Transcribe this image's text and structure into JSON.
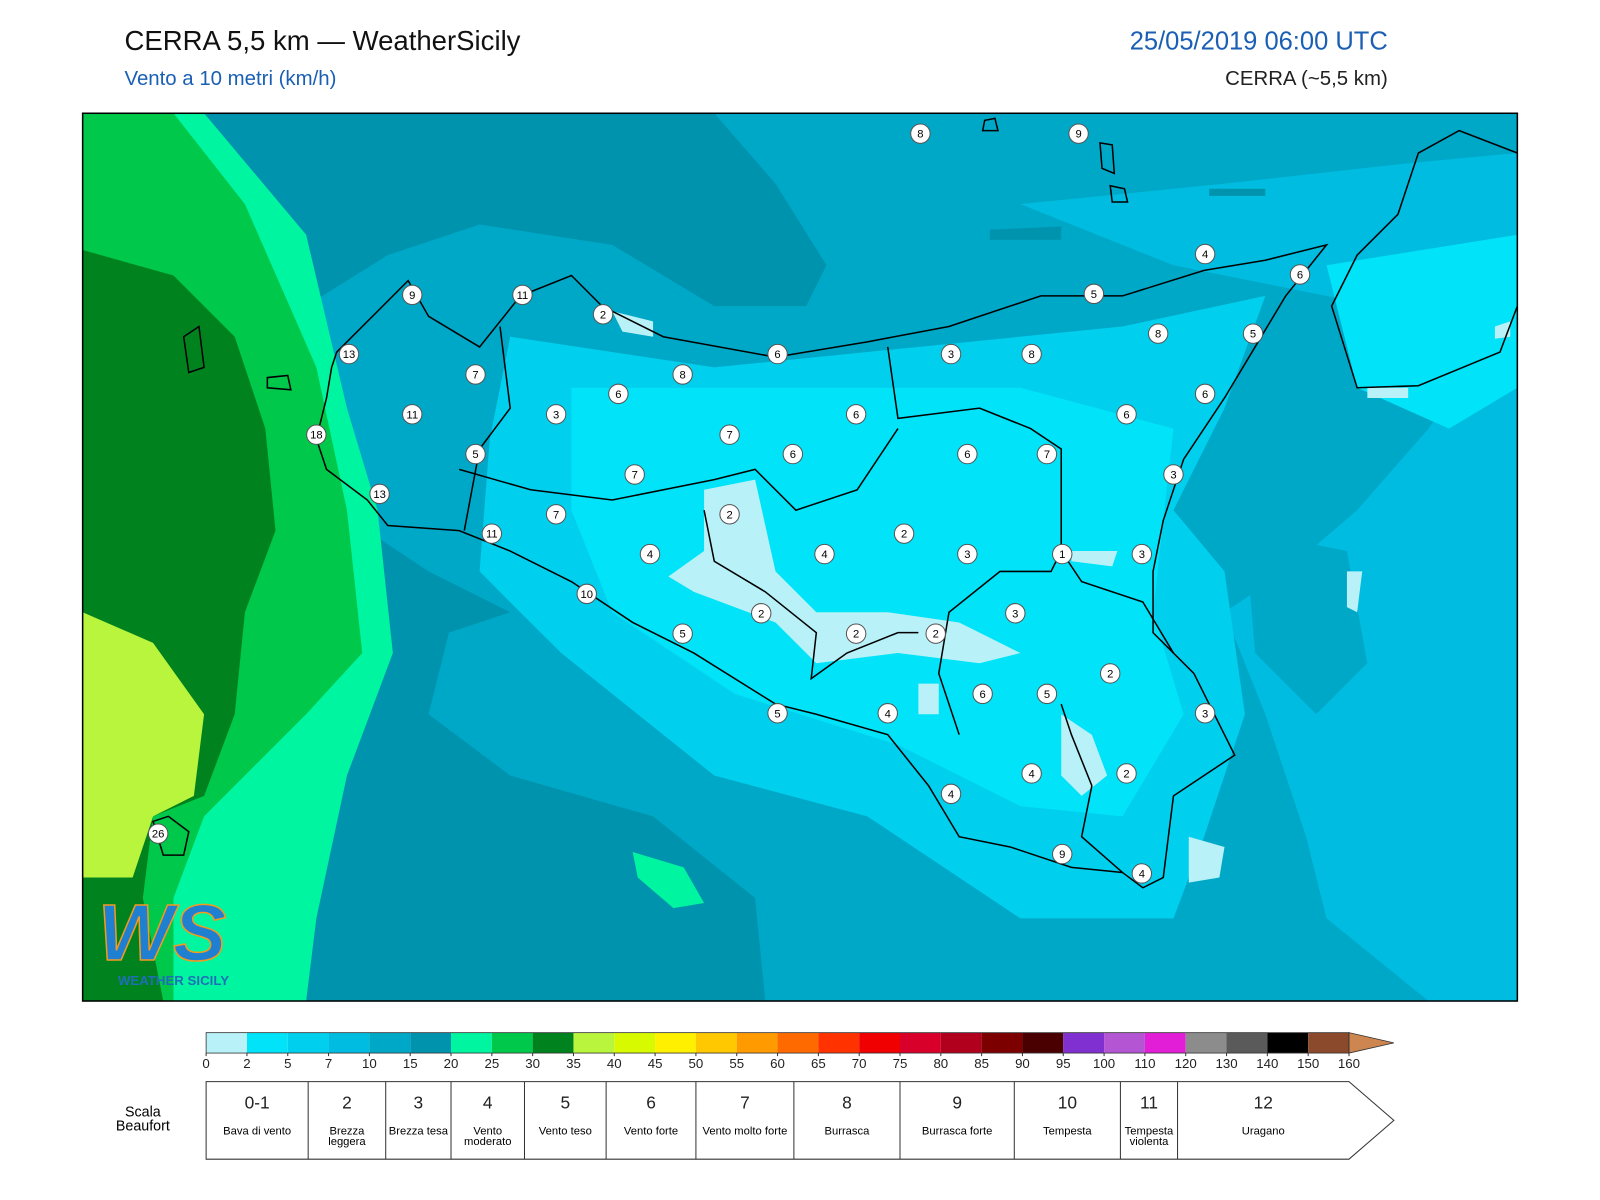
{
  "header": {
    "title": "CERRA 5,5 km — WeatherSicily",
    "subtitle": "Vento a 10 metri (km/h)",
    "datetime": "25/05/2019 06:00 UTC",
    "model": "CERRA (~5,5 km)"
  },
  "stations": [
    8,
    9,
    4,
    6,
    9,
    11,
    2,
    5,
    8,
    5,
    13,
    6,
    3,
    8,
    7,
    8,
    6,
    6,
    11,
    3,
    6,
    6,
    18,
    7,
    5,
    6,
    6,
    7,
    7,
    3,
    13,
    7,
    2,
    11,
    2,
    4,
    4,
    3,
    1,
    3,
    10,
    2,
    3,
    5,
    2,
    2,
    2,
    6,
    5,
    5,
    4,
    3,
    4,
    2,
    4,
    9,
    4,
    26
  ],
  "logo": {
    "initials": "WS",
    "name": "WEATHER SICILY"
  },
  "colorbar": {
    "ticks": [
      0,
      2,
      5,
      7,
      10,
      15,
      20,
      25,
      30,
      35,
      40,
      45,
      50,
      55,
      60,
      65,
      70,
      75,
      80,
      85,
      90,
      95,
      100,
      110,
      120,
      130,
      140,
      150,
      160
    ],
    "colors": [
      "#b8f1f8",
      "#00e3f8",
      "#00d0ee",
      "#00bce0",
      "#00a8c8",
      "#0093ae",
      "#00f5a0",
      "#00c84a",
      "#00821e",
      "#b8f53c",
      "#d8fa00",
      "#fff000",
      "#ffc800",
      "#ff9a00",
      "#ff6a00",
      "#ff3200",
      "#f00000",
      "#d8002a",
      "#b0001e",
      "#7c0000",
      "#4a0000",
      "#8030d0",
      "#b455d4",
      "#e21ed6",
      "#8c8c8c",
      "#5a5a5a",
      "#000000",
      "#8b4a2b"
    ],
    "extend_color": "#cd8650"
  },
  "beaufort": {
    "title": "Scala Beaufort",
    "forces": [
      {
        "force": "0-1",
        "label": "Bava di vento"
      },
      {
        "force": 2,
        "label": "Brezza leggera"
      },
      {
        "force": 3,
        "label": "Brezza tesa"
      },
      {
        "force": 4,
        "label": "Vento moderato"
      },
      {
        "force": 5,
        "label": "Vento teso"
      },
      {
        "force": 6,
        "label": "Vento forte"
      },
      {
        "force": 7,
        "label": "Vento molto forte"
      },
      {
        "force": 8,
        "label": "Burrasca"
      },
      {
        "force": 9,
        "label": "Burrasca forte"
      },
      {
        "force": 10,
        "label": "Tempesta"
      },
      {
        "force": 11,
        "label": "Tempesta violenta"
      },
      {
        "force": 12,
        "label": "Uragano"
      }
    ]
  }
}
